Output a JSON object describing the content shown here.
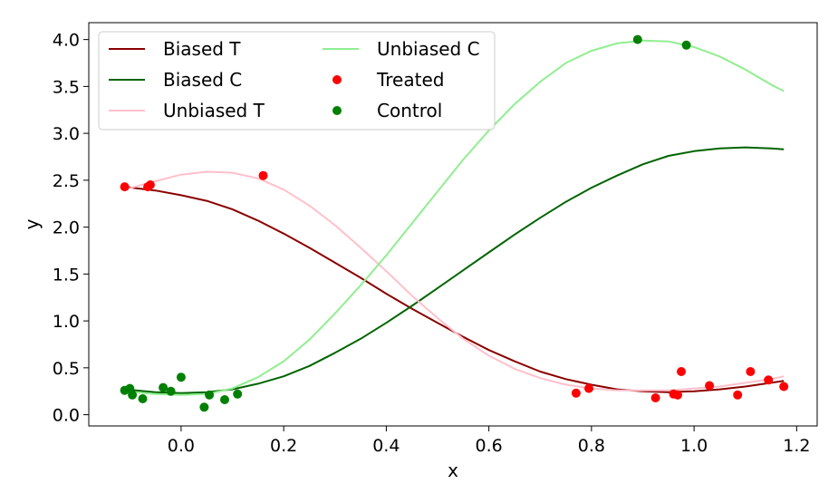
{
  "chart_data": {
    "type": "line",
    "title": "",
    "xlabel": "x",
    "ylabel": "y",
    "xlim": [
      -0.18,
      1.24
    ],
    "ylim": [
      -0.12,
      4.18
    ],
    "xticks": [
      0.0,
      0.2,
      0.4,
      0.6,
      0.8,
      1.0,
      1.2
    ],
    "xtick_labels": [
      "0.0",
      "0.2",
      "0.4",
      "0.6",
      "0.8",
      "1.0",
      "1.2"
    ],
    "yticks": [
      0.0,
      0.5,
      1.0,
      1.5,
      2.0,
      2.5,
      3.0,
      3.5,
      4.0
    ],
    "ytick_labels": [
      "0.0",
      "0.5",
      "1.0",
      "1.5",
      "2.0",
      "2.5",
      "3.0",
      "3.5",
      "4.0"
    ],
    "grid": false,
    "legend_position": "top-left",
    "series": [
      {
        "name": "Biased T",
        "kind": "line",
        "color": "#8b0000",
        "x": [
          -0.11,
          -0.05,
          0.0,
          0.05,
          0.1,
          0.15,
          0.2,
          0.25,
          0.3,
          0.35,
          0.4,
          0.45,
          0.5,
          0.55,
          0.6,
          0.65,
          0.7,
          0.75,
          0.8,
          0.85,
          0.9,
          0.95,
          1.0,
          1.05,
          1.1,
          1.15,
          1.175
        ],
        "y": [
          2.43,
          2.39,
          2.34,
          2.28,
          2.19,
          2.07,
          1.93,
          1.78,
          1.62,
          1.46,
          1.29,
          1.13,
          0.98,
          0.83,
          0.69,
          0.57,
          0.46,
          0.38,
          0.32,
          0.27,
          0.25,
          0.24,
          0.25,
          0.27,
          0.3,
          0.34,
          0.36
        ]
      },
      {
        "name": "Biased C",
        "kind": "line",
        "color": "#006400",
        "x": [
          -0.11,
          -0.05,
          0.0,
          0.05,
          0.1,
          0.15,
          0.2,
          0.25,
          0.3,
          0.35,
          0.4,
          0.45,
          0.5,
          0.55,
          0.6,
          0.65,
          0.7,
          0.75,
          0.8,
          0.85,
          0.9,
          0.95,
          1.0,
          1.05,
          1.1,
          1.15,
          1.175
        ],
        "y": [
          0.27,
          0.24,
          0.23,
          0.24,
          0.27,
          0.33,
          0.41,
          0.52,
          0.66,
          0.81,
          0.98,
          1.16,
          1.35,
          1.54,
          1.73,
          1.92,
          2.1,
          2.27,
          2.42,
          2.55,
          2.67,
          2.76,
          2.81,
          2.84,
          2.85,
          2.84,
          2.83
        ]
      },
      {
        "name": "Unbiased T",
        "kind": "line",
        "color": "#ffc0cb",
        "x": [
          -0.11,
          -0.05,
          0.0,
          0.05,
          0.1,
          0.15,
          0.2,
          0.25,
          0.3,
          0.35,
          0.4,
          0.45,
          0.5,
          0.55,
          0.6,
          0.65,
          0.7,
          0.75,
          0.8,
          0.85,
          0.9,
          0.95,
          1.0,
          1.05,
          1.1,
          1.15,
          1.175
        ],
        "y": [
          2.4,
          2.49,
          2.56,
          2.59,
          2.58,
          2.52,
          2.4,
          2.23,
          2.02,
          1.78,
          1.53,
          1.27,
          1.03,
          0.81,
          0.63,
          0.49,
          0.39,
          0.32,
          0.28,
          0.26,
          0.26,
          0.26,
          0.28,
          0.3,
          0.34,
          0.38,
          0.41
        ]
      },
      {
        "name": "Unbiased C",
        "kind": "line",
        "color": "#90ee90",
        "x": [
          -0.11,
          -0.05,
          0.0,
          0.05,
          0.1,
          0.15,
          0.2,
          0.25,
          0.3,
          0.35,
          0.4,
          0.45,
          0.5,
          0.55,
          0.6,
          0.65,
          0.7,
          0.75,
          0.8,
          0.85,
          0.9,
          0.95,
          1.0,
          1.05,
          1.1,
          1.15,
          1.175
        ],
        "y": [
          0.25,
          0.22,
          0.21,
          0.22,
          0.28,
          0.4,
          0.57,
          0.8,
          1.08,
          1.38,
          1.7,
          2.04,
          2.38,
          2.72,
          3.03,
          3.31,
          3.55,
          3.75,
          3.88,
          3.96,
          3.99,
          3.98,
          3.92,
          3.82,
          3.68,
          3.52,
          3.45
        ]
      },
      {
        "name": "Treated",
        "kind": "scatter",
        "color": "#ff0000",
        "x": [
          -0.11,
          -0.065,
          -0.06,
          0.16,
          0.77,
          0.795,
          0.925,
          0.96,
          0.968,
          0.975,
          1.03,
          1.085,
          1.11,
          1.145,
          1.175
        ],
        "y": [
          2.43,
          2.43,
          2.45,
          2.55,
          0.23,
          0.28,
          0.18,
          0.22,
          0.21,
          0.46,
          0.31,
          0.21,
          0.46,
          0.37,
          0.3
        ]
      },
      {
        "name": "Control",
        "kind": "scatter",
        "color": "#008000",
        "x": [
          -0.11,
          -0.1,
          -0.095,
          -0.075,
          -0.035,
          -0.02,
          0.0,
          0.045,
          0.055,
          0.085,
          0.11,
          0.89,
          0.985
        ],
        "y": [
          0.26,
          0.28,
          0.21,
          0.17,
          0.29,
          0.25,
          0.4,
          0.08,
          0.21,
          0.16,
          0.22,
          4.0,
          3.94
        ]
      }
    ],
    "legend": [
      {
        "label": "Biased T",
        "marker": "line",
        "color": "#8b0000"
      },
      {
        "label": "Biased C",
        "marker": "line",
        "color": "#006400"
      },
      {
        "label": "Unbiased T",
        "marker": "line",
        "color": "#ffc0cb"
      },
      {
        "label": "Unbiased C",
        "marker": "line",
        "color": "#90ee90"
      },
      {
        "label": "Treated",
        "marker": "dot",
        "color": "#ff0000"
      },
      {
        "label": "Control",
        "marker": "dot",
        "color": "#008000"
      }
    ]
  }
}
